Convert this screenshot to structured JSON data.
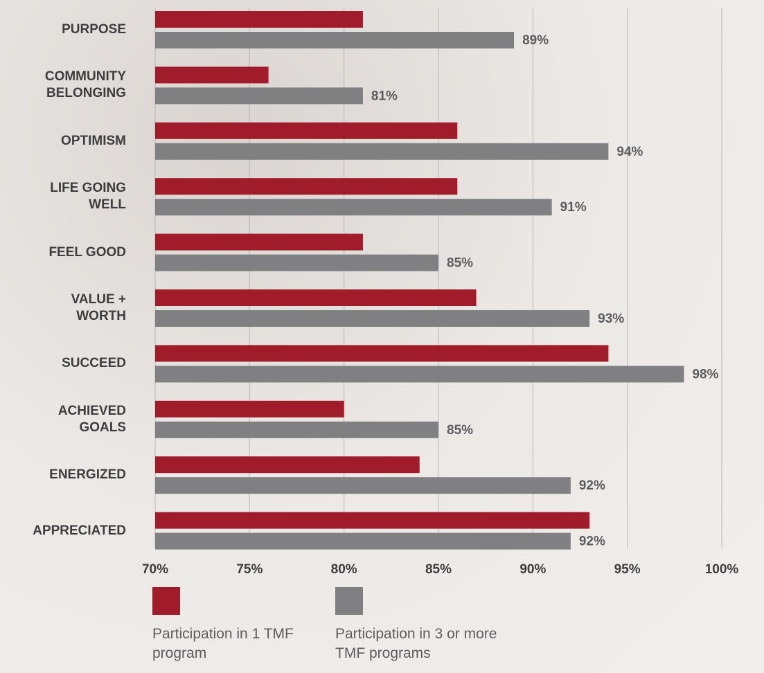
{
  "chart_data": {
    "type": "bar",
    "orientation": "horizontal",
    "categories": [
      "PURPOSE",
      "COMMUNITY BELONGING",
      "OPTIMISM",
      "LIFE GOING WELL",
      "FEEL GOOD",
      "VALUE + WORTH",
      "SUCCEED",
      "ACHIEVED GOALS",
      "ENERGIZED",
      "APPRECIATED"
    ],
    "series": [
      {
        "name": "Participation in 1 TMF program",
        "color": "#a01c2b",
        "values": [
          81,
          76,
          86,
          86,
          81,
          87,
          94,
          80,
          84,
          93
        ]
      },
      {
        "name": "Participation in 3 or more TMF programs",
        "color": "#808083",
        "values": [
          89,
          81,
          94,
          91,
          85,
          93,
          98,
          85,
          92,
          92
        ],
        "value_labels": [
          "89%",
          "81%",
          "94%",
          "91%",
          "85%",
          "93%",
          "98%",
          "85%",
          "92%",
          "92%"
        ]
      }
    ],
    "xlim": [
      70,
      100
    ],
    "xticks": [
      {
        "value": 70,
        "label": "70%"
      },
      {
        "value": 75,
        "label": "75%"
      },
      {
        "value": 80,
        "label": "80%"
      },
      {
        "value": 85,
        "label": "85%"
      },
      {
        "value": 90,
        "label": "90%"
      },
      {
        "value": 95,
        "label": "95%"
      },
      {
        "value": 100,
        "label": "100%"
      }
    ],
    "grid": true
  }
}
